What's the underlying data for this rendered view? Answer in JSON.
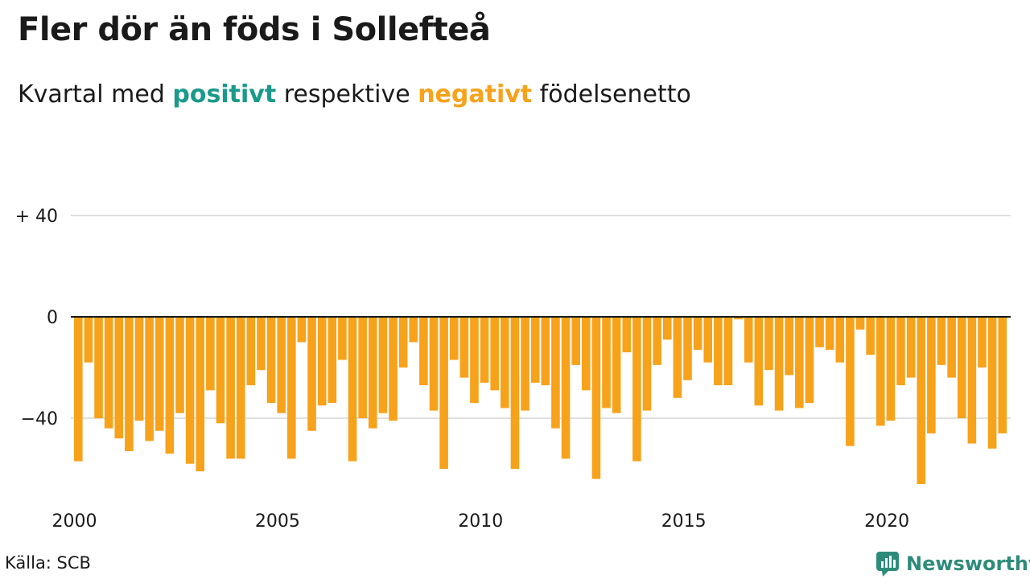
{
  "title": "Fler dör än föds i Sollefteå",
  "subtitle": {
    "prefix": "Kvartal med ",
    "positive_word": "positivt",
    "middle": " respektive ",
    "negative_word": "negativt",
    "suffix": " födelsenetto"
  },
  "source": "Källa: SCB",
  "logo_text": "Newsworthy",
  "colors": {
    "positive": "#1a9a8a",
    "negative": "#f7a21b",
    "grid": "#e0e0e0",
    "logo": "#2e8b7a"
  },
  "chart_data": {
    "type": "bar",
    "x_ticks": [
      "2000",
      "2005",
      "2010",
      "2015",
      "2020"
    ],
    "y_ticks": [
      {
        "value": 40,
        "label": "+ 40"
      },
      {
        "value": 0,
        "label": "0"
      },
      {
        "value": -40,
        "label": "−40"
      }
    ],
    "ylim": [
      -70,
      40
    ],
    "grid": true,
    "start": "2000 Q1",
    "values": [
      -57,
      -18,
      -40,
      -44,
      -48,
      -53,
      -41,
      -49,
      -45,
      -54,
      -38,
      -58,
      -61,
      -29,
      -42,
      -56,
      -56,
      -27,
      -21,
      -34,
      -38,
      -56,
      -10,
      -45,
      -35,
      -34,
      -17,
      -57,
      -40,
      -44,
      -38,
      -41,
      -20,
      -10,
      -27,
      -37,
      -60,
      -17,
      -24,
      -34,
      -26,
      -29,
      -36,
      -60,
      -37,
      -26,
      -27,
      -44,
      -56,
      -19,
      -29,
      -64,
      -36,
      -38,
      -14,
      -57,
      -37,
      -19,
      -9,
      -32,
      -25,
      -13,
      -18,
      -27,
      -27,
      -1,
      -18,
      -35,
      -21,
      -37,
      -23,
      -36,
      -34,
      -12,
      -13,
      -18,
      -51,
      -5,
      -15,
      -43,
      -41,
      -27,
      -24,
      -66,
      -46,
      -19,
      -24,
      -40,
      -50,
      -20,
      -52,
      -46
    ]
  }
}
